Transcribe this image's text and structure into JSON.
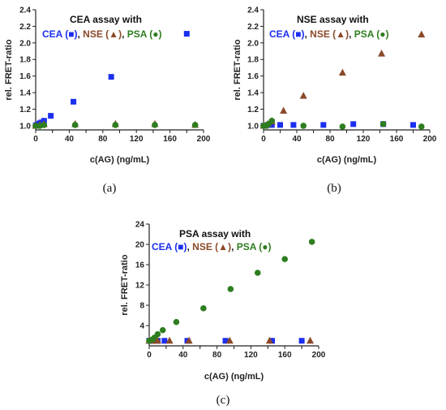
{
  "panel_labels": [
    "(a)",
    "(b)",
    "(c)"
  ],
  "colors": {
    "CEA": "#1b2ff0",
    "NSE": "#8b4a2a",
    "PSA": "#2e7d1f",
    "text": "#222222"
  },
  "chart_data": [
    {
      "type": "scatter",
      "title": "CEA assay with",
      "xlabel": "c(AG) (ng/mL)",
      "ylabel": "rel. FRET-ratio",
      "xlim": [
        0,
        200
      ],
      "ylim": [
        0.95,
        2.4
      ],
      "xticks": [
        "0",
        "20",
        "40",
        "60",
        "80",
        "100",
        "120",
        "140",
        "160",
        "180",
        "200"
      ],
      "yticks": [
        "1.0",
        "1.2",
        "1.4",
        "1.6",
        "1.8",
        "2.0",
        "2.2",
        "2.4"
      ],
      "legend": {
        "prefix_CEA": "CEA (",
        "prefix_NSE": "NSE (",
        "prefix_PSA": "PSA (",
        "close": ")",
        "sep": ", "
      },
      "series": [
        {
          "name": "CEA",
          "marker": "square",
          "x": [
            0,
            1,
            2,
            3,
            5,
            7,
            10,
            18,
            45,
            90,
            180
          ],
          "y": [
            1.0,
            1.01,
            1.01,
            1.02,
            1.03,
            1.04,
            1.06,
            1.12,
            1.29,
            1.59,
            2.11
          ]
        },
        {
          "name": "NSE",
          "marker": "triangle",
          "x": [
            0,
            5,
            10,
            47,
            95,
            142,
            190
          ],
          "y": [
            1.0,
            1.01,
            1.02,
            1.02,
            1.02,
            1.02,
            1.01
          ]
        },
        {
          "name": "PSA",
          "marker": "circle",
          "x": [
            0,
            5,
            10,
            47,
            95,
            142,
            190
          ],
          "y": [
            1.0,
            1.0,
            1.01,
            1.01,
            1.01,
            1.01,
            1.01
          ]
        }
      ]
    },
    {
      "type": "scatter",
      "title": "NSE assay with",
      "xlabel": "c(AG) (ng/mL)",
      "ylabel": "rel. FRET-ratio",
      "xlim": [
        0,
        200
      ],
      "ylim": [
        0.95,
        2.4
      ],
      "xticks": [
        "0",
        "20",
        "40",
        "60",
        "80",
        "100",
        "120",
        "140",
        "160",
        "180",
        "200"
      ],
      "yticks": [
        "1.0",
        "1.2",
        "1.4",
        "1.6",
        "1.8",
        "2.0",
        "2.2",
        "2.4"
      ],
      "legend": {
        "prefix_CEA": "CEA (",
        "prefix_NSE": "NSE (",
        "prefix_PSA": "PSA (",
        "close": ")",
        "sep": ", "
      },
      "series": [
        {
          "name": "CEA",
          "marker": "square",
          "x": [
            0,
            2,
            5,
            10,
            20,
            36,
            72,
            108,
            144,
            180
          ],
          "y": [
            1.0,
            1.0,
            1.01,
            1.01,
            1.01,
            1.01,
            1.01,
            1.02,
            1.02,
            1.01
          ]
        },
        {
          "name": "NSE",
          "marker": "triangle",
          "x": [
            0,
            2,
            5,
            10,
            24,
            48,
            95,
            142,
            190
          ],
          "y": [
            1.0,
            1.0,
            1.02,
            1.05,
            1.18,
            1.36,
            1.64,
            1.87,
            2.1
          ]
        },
        {
          "name": "PSA",
          "marker": "circle",
          "x": [
            0,
            3,
            6,
            10,
            48,
            95,
            144,
            190
          ],
          "y": [
            1.0,
            1.0,
            1.02,
            1.06,
            1.0,
            0.99,
            1.02,
            0.99
          ]
        }
      ]
    },
    {
      "type": "scatter",
      "title": "PSA assay with",
      "xlabel": "c(AG) (ng/mL)",
      "ylabel": "rel. FRET-ratio",
      "xlim": [
        0,
        200
      ],
      "ylim": [
        0,
        24
      ],
      "xticks": [
        "0",
        "20",
        "40",
        "60",
        "80",
        "100",
        "120",
        "140",
        "160",
        "180",
        "200"
      ],
      "yticks": [
        "4",
        "8",
        "12",
        "16",
        "20",
        "24"
      ],
      "legend": {
        "prefix_CEA": "CEA (",
        "prefix_NSE": "NSE (",
        "prefix_PSA": "PSA (",
        "close": ")",
        "sep": ", "
      },
      "series": [
        {
          "name": "CEA",
          "marker": "square",
          "x": [
            0,
            2,
            5,
            10,
            18,
            45,
            90,
            145,
            180
          ],
          "y": [
            1.0,
            1.0,
            1.0,
            1.0,
            1.0,
            1.0,
            1.0,
            1.0,
            1.0
          ]
        },
        {
          "name": "NSE",
          "marker": "triangle",
          "x": [
            0,
            5,
            10,
            24,
            47,
            95,
            142,
            190
          ],
          "y": [
            1.0,
            1.0,
            1.0,
            1.0,
            1.0,
            1.0,
            1.0,
            1.0
          ]
        },
        {
          "name": "PSA",
          "marker": "circle",
          "x": [
            0,
            3,
            6,
            10,
            16,
            32,
            64,
            96,
            128,
            160,
            192
          ],
          "y": [
            1.0,
            1.2,
            1.6,
            2.3,
            3.1,
            4.7,
            7.4,
            11.2,
            14.4,
            17.1,
            20.5
          ]
        }
      ]
    }
  ]
}
